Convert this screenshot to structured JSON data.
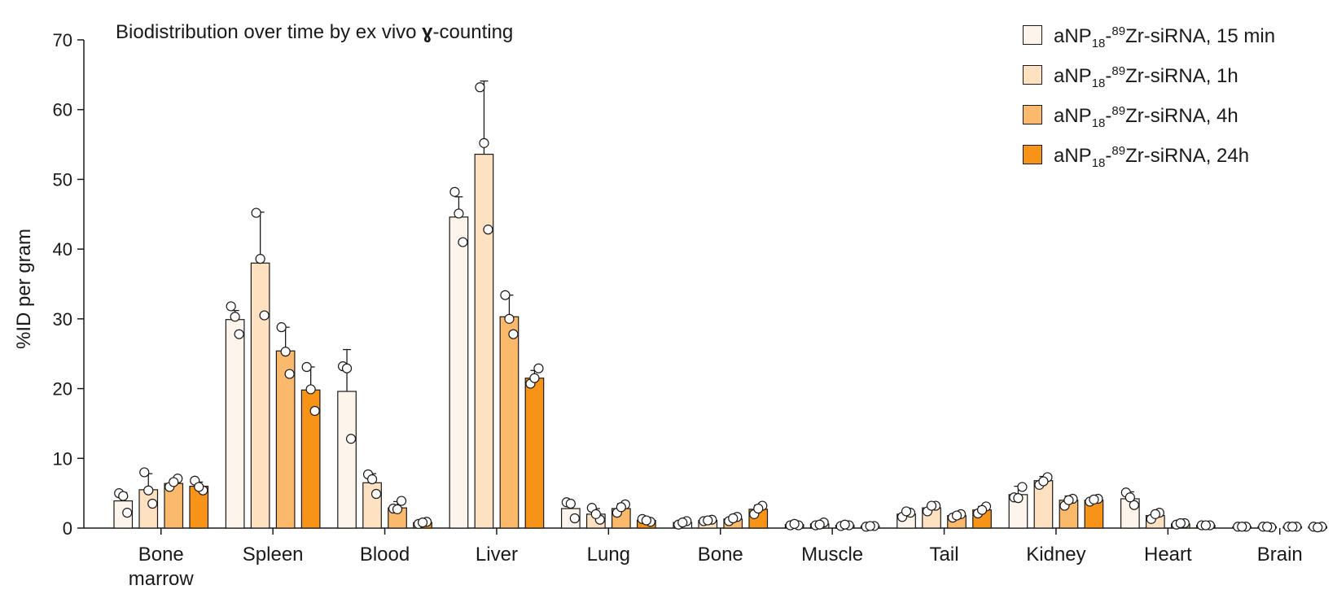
{
  "chart_data": {
    "type": "bar",
    "title": "Biodistribution over time by ex vivo",
    "title_symbol": "ɣ",
    "title_suffix": "-counting",
    "xlabel": "",
    "ylabel": "%ID per gram",
    "ylim": [
      0,
      70
    ],
    "yticks": [
      "0",
      "10",
      "20",
      "30",
      "40",
      "50",
      "60",
      "70"
    ],
    "categories": [
      "Bone marrow",
      "Spleen",
      "Blood",
      "Liver",
      "Lung",
      "Bone",
      "Muscle",
      "Tail",
      "Kidney",
      "Heart",
      "Brain"
    ],
    "legend_position": "top-right",
    "series": [
      {
        "name": "aNP18-89Zr-siRNA, 15 min",
        "label_parts": {
          "a": "aNP",
          "sub": "18",
          "b": "-",
          "sup": "89",
          "c": "Zr-siRNA, 15 min"
        },
        "color": "#fdf5ec",
        "values": [
          3.9,
          29.9,
          19.6,
          44.6,
          2.8,
          0.8,
          0.5,
          2.0,
          4.8,
          4.2,
          0.2
        ],
        "errors": [
          1.2,
          1.3,
          6.0,
          2.9,
          1.0,
          0.3,
          0.2,
          0.6,
          1.2,
          1.0,
          0.1
        ],
        "points": [
          [
            5.0,
            2.2,
            4.6
          ],
          [
            31.8,
            27.8,
            30.3
          ],
          [
            23.2,
            12.8,
            22.9
          ],
          [
            48.2,
            41.0,
            45.1
          ],
          [
            3.7,
            1.4,
            3.5
          ],
          [
            0.5,
            1.0,
            0.8
          ],
          [
            0.4,
            0.4,
            0.6
          ],
          [
            1.6,
            2.2,
            2.4
          ],
          [
            4.4,
            5.9,
            4.3
          ],
          [
            5.1,
            3.3,
            4.4
          ],
          [
            0.2,
            0.2,
            0.2
          ]
        ]
      },
      {
        "name": "aNP18-89Zr-siRNA, 1h",
        "label_parts": {
          "a": "aNP",
          "sub": "18",
          "b": "-",
          "sup": "89",
          "c": "Zr-siRNA, 1h"
        },
        "color": "#fde1c0",
        "values": [
          5.5,
          38.0,
          6.5,
          53.6,
          2.0,
          1.1,
          0.6,
          2.9,
          6.8,
          1.8,
          0.2
        ],
        "errors": [
          2.3,
          7.3,
          1.3,
          10.5,
          0.8,
          0.3,
          0.2,
          0.4,
          0.6,
          0.5,
          0.1
        ],
        "points": [
          [
            8.0,
            3.5,
            5.4
          ],
          [
            45.2,
            30.5,
            38.6
          ],
          [
            7.7,
            4.9,
            7.0
          ],
          [
            63.2,
            42.8,
            55.2
          ],
          [
            2.9,
            1.2,
            2.0
          ],
          [
            1.0,
            1.2,
            1.1
          ],
          [
            0.4,
            0.8,
            0.5
          ],
          [
            2.4,
            3.2,
            3.2
          ],
          [
            6.2,
            7.3,
            6.7
          ],
          [
            1.3,
            2.2,
            2.0
          ],
          [
            0.2,
            0.1,
            0.2
          ]
        ]
      },
      {
        "name": "aNP18-89Zr-siRNA, 4h",
        "label_parts": {
          "a": "aNP",
          "sub": "18",
          "b": "-",
          "sup": "89",
          "c": "Zr-siRNA, 4h"
        },
        "color": "#fbb96b",
        "values": [
          6.4,
          25.4,
          2.9,
          30.3,
          2.8,
          1.3,
          0.4,
          1.8,
          4.0,
          0.6,
          0.2
        ],
        "errors": [
          0.6,
          3.4,
          0.9,
          3.1,
          0.7,
          0.3,
          0.1,
          0.3,
          0.6,
          0.2,
          0.1
        ],
        "points": [
          [
            5.9,
            7.1,
            6.6
          ],
          [
            28.8,
            22.1,
            25.3
          ],
          [
            2.8,
            3.9,
            2.7
          ],
          [
            33.4,
            27.8,
            30.0
          ],
          [
            2.2,
            3.4,
            3.0
          ],
          [
            1.0,
            1.6,
            1.4
          ],
          [
            0.3,
            0.4,
            0.5
          ],
          [
            1.5,
            2.0,
            1.8
          ],
          [
            3.2,
            4.2,
            4.0
          ],
          [
            0.5,
            0.7,
            0.7
          ],
          [
            0.2,
            0.2,
            0.2
          ]
        ]
      },
      {
        "name": "aNP18-89Zr-siRNA, 24h",
        "label_parts": {
          "a": "aNP",
          "sub": "18",
          "b": "-",
          "sup": "89",
          "c": "Zr-siRNA, 24h"
        },
        "color": "#f79418",
        "values": [
          6.0,
          19.8,
          0.8,
          21.5,
          1.1,
          2.7,
          0.3,
          2.6,
          4.0,
          0.4,
          0.2
        ],
        "errors": [
          0.6,
          3.3,
          0.2,
          1.1,
          0.2,
          0.6,
          0.1,
          0.5,
          0.4,
          0.1,
          0.1
        ],
        "points": [
          [
            6.8,
            5.4,
            5.9
          ],
          [
            23.1,
            16.8,
            19.9
          ],
          [
            0.6,
            0.9,
            0.8
          ],
          [
            20.7,
            22.9,
            21.5
          ],
          [
            1.3,
            0.9,
            1.1
          ],
          [
            2.0,
            3.2,
            2.8
          ],
          [
            0.2,
            0.3,
            0.3
          ],
          [
            2.1,
            3.1,
            2.6
          ],
          [
            3.8,
            4.2,
            4.1
          ],
          [
            0.4,
            0.4,
            0.4
          ],
          [
            0.2,
            0.2,
            0.1
          ]
        ]
      }
    ]
  }
}
